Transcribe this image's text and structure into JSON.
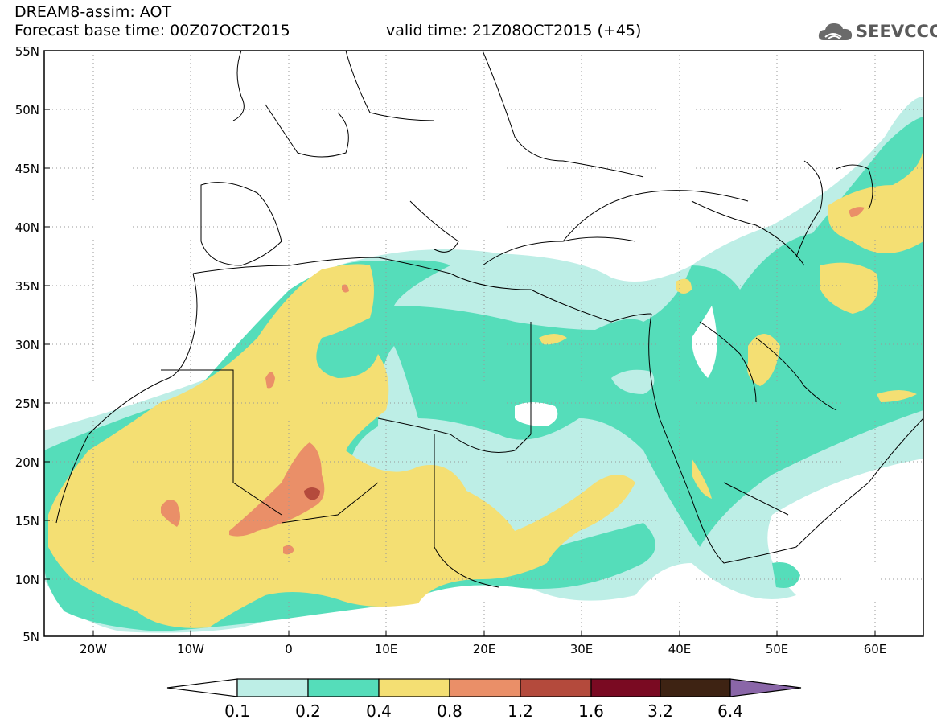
{
  "header": {
    "title": "DREAM8-assim: AOT",
    "base_time": "Forecast base time: 00Z07OCT2015",
    "valid_time": "valid time: 21Z08OCT2015 (+45)"
  },
  "logo": {
    "text": "SEEVCCC",
    "icon": "cloud-icon"
  },
  "map": {
    "lat_labels": [
      "55N",
      "50N",
      "45N",
      "40N",
      "35N",
      "30N",
      "25N",
      "20N",
      "15N",
      "10N",
      "5N"
    ],
    "lon_labels": [
      "20W",
      "10W",
      "0",
      "10E",
      "20E",
      "30E",
      "40E",
      "50E",
      "60E"
    ],
    "lat_range": [
      5,
      55
    ],
    "lon_range": [
      -25,
      65
    ],
    "grid": "dotted"
  },
  "colorbar": {
    "levels": [
      "0.1",
      "0.2",
      "0.4",
      "0.8",
      "1.2",
      "1.6",
      "3.2",
      "6.4"
    ],
    "colors": [
      "#ffffff",
      "#bdeee6",
      "#55ddba",
      "#f4df73",
      "#ea8f68",
      "#b44a3c",
      "#7a0a22",
      "#3e2313",
      "#8a66a8"
    ]
  }
}
